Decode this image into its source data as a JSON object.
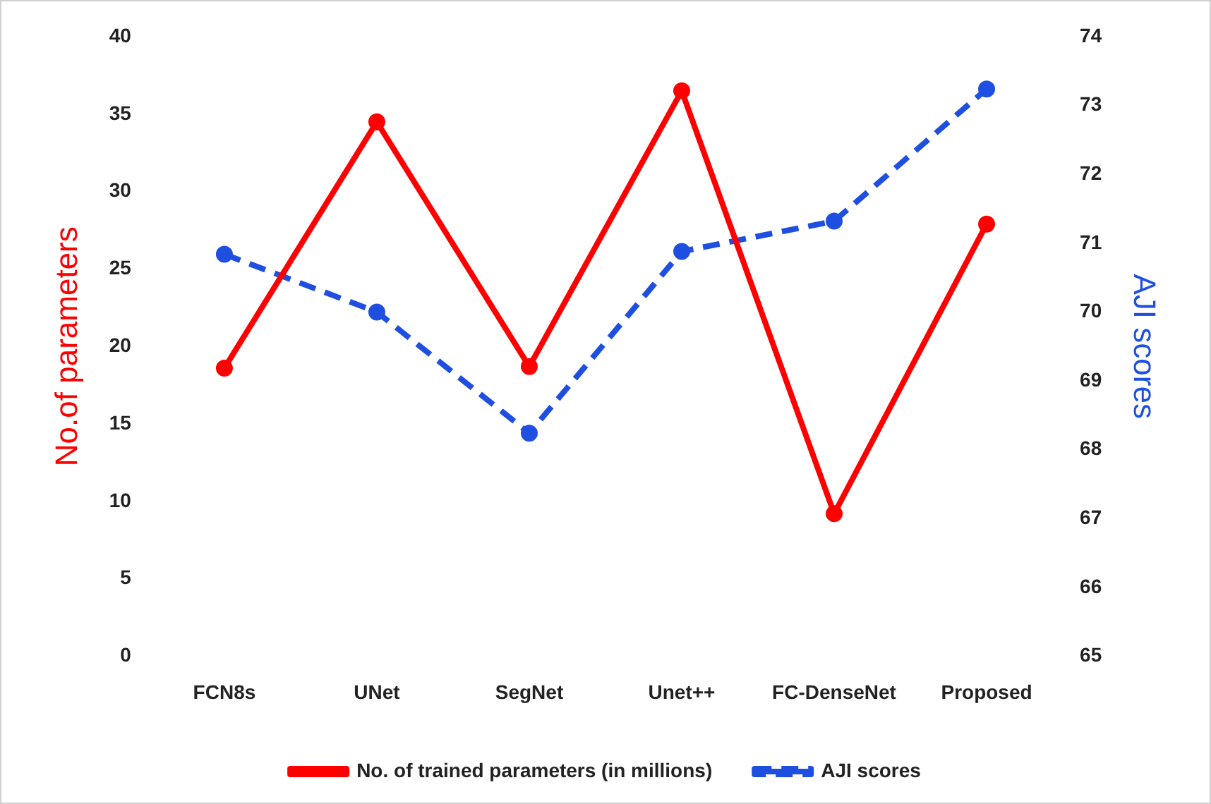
{
  "chart_data": {
    "type": "line",
    "ylabel": "No.of parameters",
    "y2label": "AJI scores",
    "categories": [
      "FCN8s",
      "UNet",
      "SegNet",
      "Unet++",
      "FC-DenseNet",
      "Proposed"
    ],
    "series": [
      {
        "name": "No. of trained parameters (in millions)",
        "color": "#ff0000",
        "values": [
          18.6,
          34.5,
          18.7,
          36.5,
          9.2,
          27.9
        ]
      },
      {
        "name": "AJI scores",
        "color": "#1f4fe0",
        "axis": "y2",
        "line_style": "dashed",
        "values": [
          70.84,
          70.0,
          68.24,
          70.88,
          71.32,
          73.24
        ]
      }
    ],
    "ylim": [
      0,
      40
    ],
    "yticks": [
      0,
      5,
      10,
      15,
      20,
      25,
      30,
      35,
      40
    ],
    "y2lim": [
      65,
      74
    ],
    "y2ticks": [
      65,
      66,
      67,
      68,
      69,
      70,
      71,
      72,
      73,
      74
    ],
    "grid": false,
    "legend": "bottom",
    "marker": "circle"
  }
}
